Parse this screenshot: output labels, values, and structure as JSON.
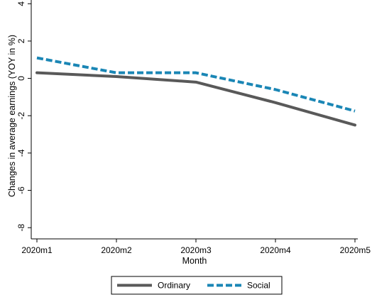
{
  "chart_data": {
    "type": "line",
    "title": "",
    "xlabel": "Month",
    "ylabel": "Changes in average earnings (YOY in %)",
    "categories": [
      "2020m1",
      "2020m2",
      "2020m3",
      "2020m4",
      "2020m5"
    ],
    "yticks": [
      -8,
      -6,
      -4,
      -2,
      0,
      2,
      4
    ],
    "ytick_labels": [
      "-8",
      "-6",
      "-4",
      "-2",
      "0",
      "2",
      "4"
    ],
    "ylim": [
      -8.6,
      4.2
    ],
    "grid": false,
    "legend_position": "bottom",
    "series": [
      {
        "name": "Ordinary",
        "values": [
          0.3,
          0.1,
          -0.2,
          -1.3,
          -2.5
        ],
        "color": "#595959",
        "style": "solid"
      },
      {
        "name": "Social",
        "values": [
          1.1,
          0.3,
          0.3,
          -0.6,
          -1.75
        ],
        "color": "#1a86b5",
        "style": "dashed"
      }
    ]
  }
}
